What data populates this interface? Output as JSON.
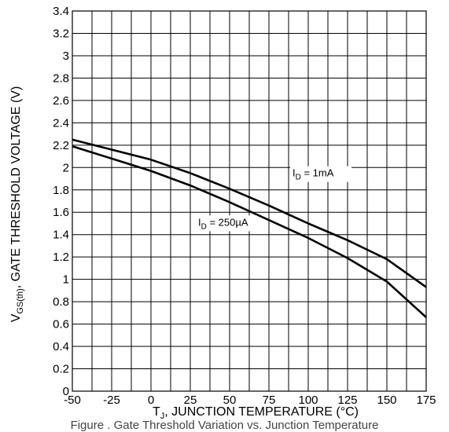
{
  "chart_data": {
    "type": "line",
    "x": [
      -50,
      -25,
      0,
      25,
      50,
      75,
      100,
      125,
      150,
      175
    ],
    "series": [
      {
        "id": "id_1mA",
        "values": [
          2.25,
          2.16,
          2.07,
          1.95,
          1.81,
          1.66,
          1.5,
          1.35,
          1.18,
          0.93
        ]
      },
      {
        "id": "id_250uA",
        "values": [
          2.19,
          2.08,
          1.97,
          1.84,
          1.69,
          1.53,
          1.37,
          1.19,
          0.98,
          0.66
        ]
      }
    ],
    "annotations": [
      {
        "series": "id_1mA",
        "main": "I",
        "sub": "D",
        "rest": " = 1mA",
        "at": [
          90,
          1.92
        ]
      },
      {
        "series": "id_250uA",
        "main": "I",
        "sub": "D",
        "rest": " = 250µA",
        "at": [
          30,
          1.48
        ]
      }
    ],
    "xlim": [
      -50,
      175
    ],
    "ylim": [
      0,
      3.4
    ],
    "x_ticks": [
      "-50",
      "-25",
      "0",
      "25",
      "50",
      "75",
      "100",
      "125",
      "150",
      "175"
    ],
    "y_ticks": [
      "0",
      "0.2",
      "0.4",
      "0.6",
      "0.8",
      "1",
      "1.2",
      "1.4",
      "1.6",
      "1.8",
      "2",
      "2.2",
      "2.4",
      "2.6",
      "2.8",
      "3",
      "3.2",
      "3.4"
    ],
    "xlabel": {
      "main": "T",
      "sub": "J",
      "rest": ", JUNCTION TEMPERATURE (°C)"
    },
    "ylabel": {
      "main": "V",
      "sub": "GS(th)",
      "rest": ", GATE THRESHOLD VOLTAGE (V)"
    },
    "grid": true,
    "line_color": "#000000",
    "caption": "Figure . Gate Threshold Variation vs. Junction Temperature"
  }
}
